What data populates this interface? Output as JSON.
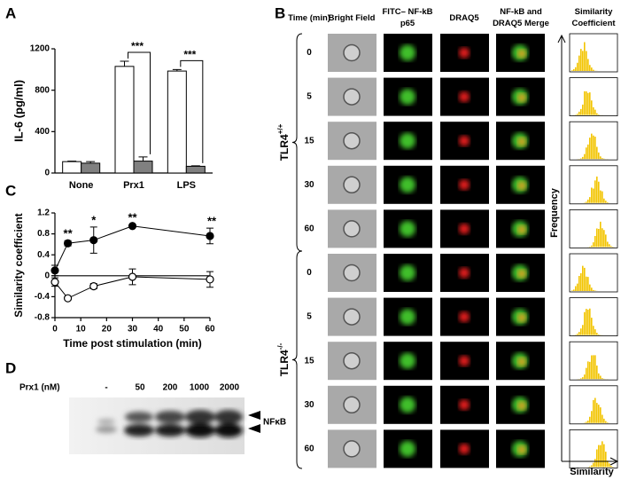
{
  "panel_letters": [
    "A",
    "B",
    "C",
    "D"
  ],
  "chart_data": [
    {
      "type": "bar",
      "ylabel": "IL-6 (pg/ml)",
      "categories": [
        "None",
        "Prx1",
        "LPS"
      ],
      "series": [
        {
          "color": "#ffffff",
          "values": [
            110,
            1030,
            985
          ],
          "errors": [
            5,
            50,
            15
          ]
        },
        {
          "color": "#808080",
          "values": [
            95,
            115,
            65
          ],
          "errors": [
            15,
            40,
            5
          ]
        }
      ],
      "ylim": [
        0,
        1200
      ],
      "yticks": [
        0,
        400,
        800,
        1200
      ],
      "annotations": [
        "***",
        "***"
      ]
    },
    {
      "type": "line",
      "ylabel": "Similarity coefficient",
      "xlabel": "Time post stimulation (min)",
      "x": [
        0,
        5,
        15,
        30,
        60
      ],
      "series": [
        {
          "color": "#000000",
          "values": [
            0.1,
            0.62,
            0.68,
            0.95,
            0.76
          ],
          "errors": [
            0.1,
            0.05,
            0.25,
            0.03,
            0.15
          ]
        },
        {
          "color": "#ffffff",
          "values": [
            -0.12,
            -0.43,
            -0.2,
            -0.02,
            -0.07
          ],
          "errors": [
            0.08,
            0.03,
            0.05,
            0.15,
            0.15
          ]
        }
      ],
      "xlim": [
        0,
        60
      ],
      "xticks": [
        0,
        10,
        20,
        30,
        40,
        50,
        60
      ],
      "ylim": [
        -0.8,
        1.2
      ],
      "yticks": [
        -0.8,
        -0.4,
        0,
        0.4,
        0.8,
        1.2
      ],
      "annotations": [
        null,
        "**",
        "*",
        "**",
        "**"
      ]
    }
  ],
  "imaging": {
    "headers": [
      "Time (min)",
      "Bright Field",
      "FITC– NF-kB p65",
      "DRAQ5",
      "NF-kB and DRAQ5 Merge",
      "Similarity Coefficient"
    ],
    "times": [
      "0",
      "5",
      "15",
      "30",
      "60",
      "0",
      "5",
      "15",
      "30",
      "60"
    ],
    "groups": [
      {
        "name": "TLR4",
        "superscript": "+/+"
      },
      {
        "name": "TLR4",
        "superscript": "-/-"
      }
    ],
    "y_axis": "Frequency",
    "x_axis": "Similarity"
  },
  "blot": {
    "row_label": "Prx1 (nM)",
    "lanes": [
      "-",
      "50",
      "200",
      "1000",
      "2000"
    ],
    "band": "NFκB"
  }
}
